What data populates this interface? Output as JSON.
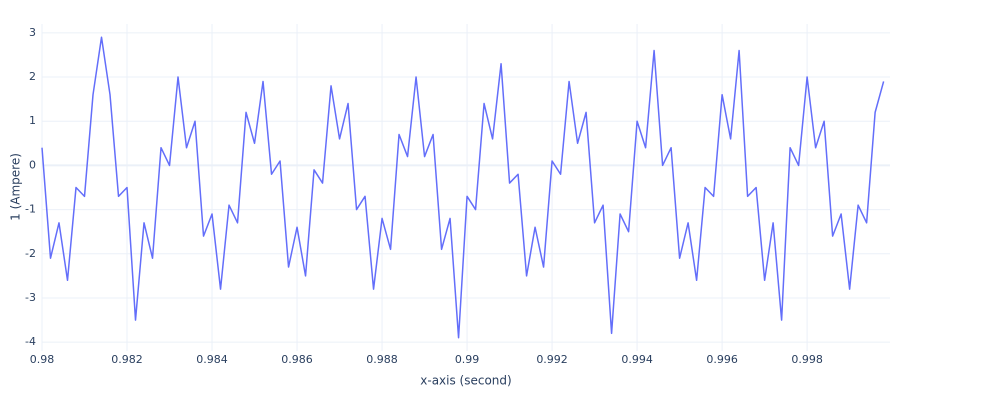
{
  "chart_data": {
    "type": "line",
    "x_label": "x-axis (second)",
    "y_label": "1 (Ampere)",
    "x": [
      0.98,
      0.9802,
      0.9804,
      0.9806,
      0.9808,
      0.981,
      0.9812,
      0.9814,
      0.9816,
      0.9818,
      0.982,
      0.9822,
      0.9824,
      0.9826,
      0.9828,
      0.983,
      0.9832,
      0.9834,
      0.9836,
      0.9838,
      0.984,
      0.9842,
      0.9844,
      0.9846,
      0.9848,
      0.985,
      0.9852,
      0.9854,
      0.9856,
      0.9858,
      0.986,
      0.9862,
      0.9864,
      0.9866,
      0.9868,
      0.987,
      0.9872,
      0.9874,
      0.9876,
      0.9878,
      0.988,
      0.9882,
      0.9884,
      0.9886,
      0.9888,
      0.989,
      0.9892,
      0.9894,
      0.9896,
      0.9898,
      0.99,
      0.9902,
      0.9904,
      0.9906,
      0.9908,
      0.991,
      0.9912,
      0.9914,
      0.9916,
      0.9918,
      0.992,
      0.9922,
      0.9924,
      0.9926,
      0.9928,
      0.993,
      0.9932,
      0.9934,
      0.9936,
      0.9938,
      0.994,
      0.9942,
      0.9944,
      0.9946,
      0.9948,
      0.995,
      0.9952,
      0.9954,
      0.9956,
      0.9958,
      0.996,
      0.9962,
      0.9964,
      0.9966,
      0.9968,
      0.997,
      0.9972,
      0.9974,
      0.9976,
      0.9978,
      0.998,
      0.9982,
      0.9984,
      0.9986,
      0.9988,
      0.999,
      0.9992,
      0.9994,
      0.9996,
      0.9998
    ],
    "values": [
      0.4,
      -2.1,
      -1.3,
      -2.6,
      -0.5,
      -0.7,
      1.6,
      2.9,
      1.6,
      -0.7,
      -0.5,
      -3.5,
      -1.3,
      -2.1,
      0.4,
      0.0,
      2.0,
      0.4,
      1.0,
      -1.6,
      -1.1,
      -2.8,
      -0.9,
      -1.3,
      1.2,
      0.5,
      1.9,
      -0.2,
      0.1,
      -2.3,
      -1.4,
      -2.5,
      -0.1,
      -0.4,
      1.8,
      0.6,
      1.4,
      -1.0,
      -0.7,
      -2.8,
      -1.2,
      -1.9,
      0.7,
      0.2,
      2.0,
      0.2,
      0.7,
      -1.9,
      -1.2,
      -3.9,
      -0.7,
      -1.0,
      1.4,
      0.6,
      2.3,
      -0.4,
      -0.2,
      -2.5,
      -1.4,
      -2.3,
      0.1,
      -0.2,
      1.9,
      0.5,
      1.2,
      -1.3,
      -0.9,
      -3.8,
      -1.1,
      -1.5,
      1.0,
      0.4,
      2.6,
      0.0,
      0.4,
      -2.1,
      -1.3,
      -2.6,
      -0.5,
      -0.7,
      1.6,
      0.6,
      2.6,
      -0.7,
      -0.5,
      -2.6,
      -1.3,
      -3.5,
      0.4,
      0.0,
      2.0,
      0.4,
      1.0,
      -1.6,
      -1.1,
      -2.8,
      -0.9,
      -1.3,
      1.2,
      1.9
    ],
    "color": "#636efa",
    "xlim": [
      0.98,
      0.99995
    ],
    "xticks": [
      0.98,
      0.982,
      0.984,
      0.986,
      0.988,
      0.99,
      0.992,
      0.994,
      0.996,
      0.998
    ],
    "ylim": [
      -4.2,
      3.2
    ],
    "yticks": [
      -4,
      -3,
      -2,
      -1,
      0,
      1,
      2,
      3
    ],
    "grid": true
  }
}
